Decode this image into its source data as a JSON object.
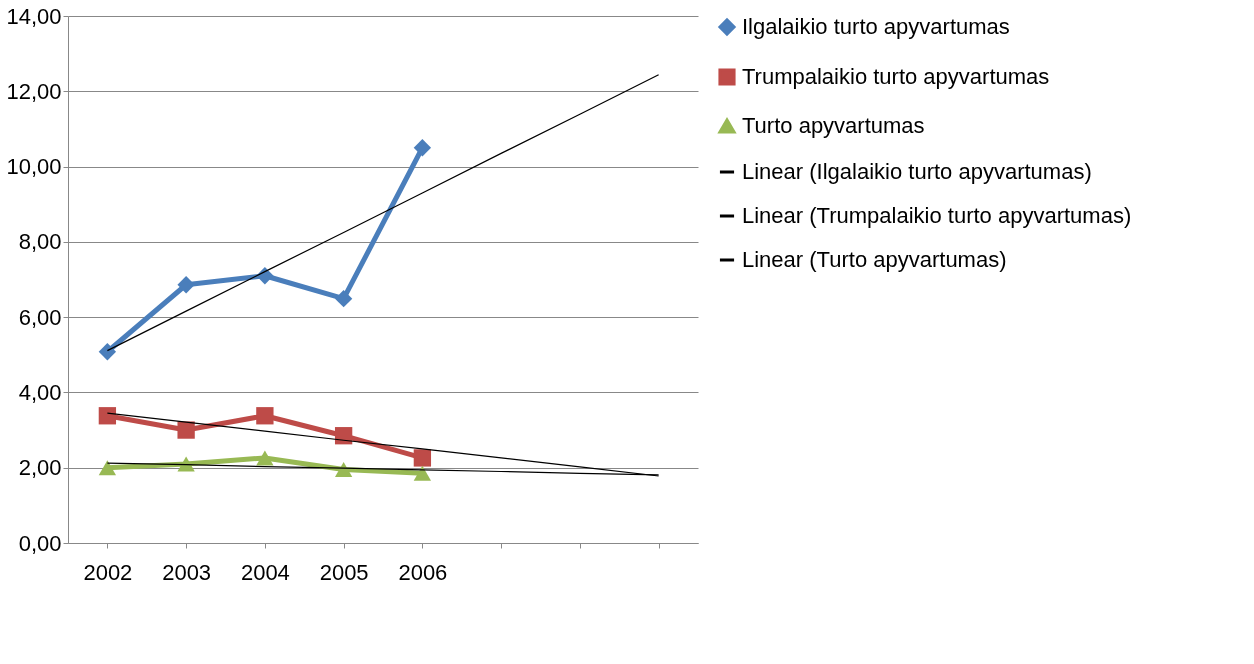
{
  "chart_data": {
    "type": "line",
    "categories": [
      "2002",
      "2003",
      "2004",
      "2005",
      "2006",
      null,
      null,
      null
    ],
    "series": [
      {
        "name": "Ilgalaikio turto apyvartumas",
        "color": "#4a7ebb",
        "marker": "diamond",
        "values": [
          5.08,
          6.86,
          7.1,
          6.49,
          10.5,
          null,
          null,
          null
        ]
      },
      {
        "name": "Trumpalaikio turto apyvartumas",
        "color": "#be4b48",
        "marker": "square",
        "values": [
          3.38,
          3.0,
          3.38,
          2.85,
          2.26,
          null,
          null,
          null
        ]
      },
      {
        "name": "Turto apyvartumas",
        "color": "#98b954",
        "marker": "triangle",
        "values": [
          2.0,
          2.1,
          2.26,
          1.95,
          1.85,
          null,
          null,
          null
        ]
      },
      {
        "name": "Linear (Ilgalaikio turto apyvartumas)",
        "color": "#000000",
        "marker": "none",
        "values": [
          5.11,
          6.16,
          7.21,
          8.25,
          9.3,
          10.35,
          11.39,
          12.44
        ]
      },
      {
        "name": "Linear (Trumpalaikio turto apyvartumas)",
        "color": "#000000",
        "marker": "none",
        "values": [
          3.45,
          3.21,
          2.97,
          2.73,
          2.5,
          2.26,
          2.02,
          1.78
        ]
      },
      {
        "name": "Linear (Turto apyvartumas)",
        "color": "#000000",
        "marker": "none",
        "values": [
          2.12,
          2.08,
          2.03,
          1.99,
          1.94,
          1.9,
          1.85,
          1.81
        ]
      }
    ],
    "ylim": [
      0,
      14
    ],
    "yticks": [
      {
        "value": 0,
        "label": "0,00"
      },
      {
        "value": 2,
        "label": "2,00"
      },
      {
        "value": 4,
        "label": "4,00"
      },
      {
        "value": 6,
        "label": "6,00"
      },
      {
        "value": 8,
        "label": "8,00"
      },
      {
        "value": 10,
        "label": "10,00"
      },
      {
        "value": 12,
        "label": "12,00"
      },
      {
        "value": 14,
        "label": "14,00"
      }
    ],
    "grid": "y",
    "legend": "right"
  }
}
